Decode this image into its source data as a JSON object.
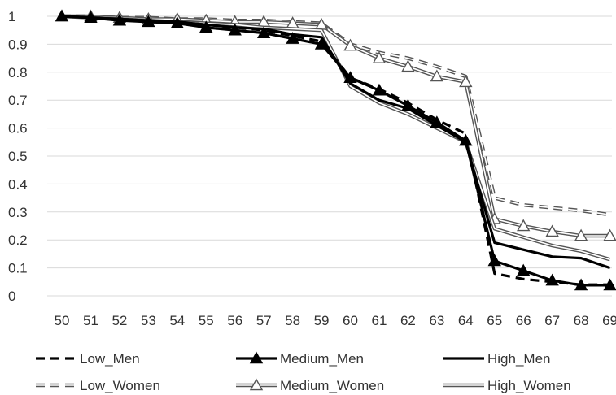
{
  "chart_data": {
    "type": "line",
    "x": [
      50,
      51,
      52,
      53,
      54,
      55,
      56,
      57,
      58,
      59,
      60,
      61,
      62,
      63,
      64,
      65,
      66,
      67,
      68,
      69
    ],
    "ylim": [
      0,
      1
    ],
    "yticks": [
      "0",
      "0.1",
      "0.2",
      "0.3",
      "0.4",
      "0.5",
      "0.6",
      "0.7",
      "0.8",
      "0.9",
      "1"
    ],
    "grid": true,
    "legend_position": "bottom",
    "title": "",
    "xlabel": "",
    "ylabel": "",
    "series": [
      {
        "name": "Low_Men",
        "style": "dashed-thick",
        "color": "#000000",
        "values": [
          1.0,
          0.995,
          0.99,
          0.985,
          0.98,
          0.97,
          0.96,
          0.95,
          0.93,
          0.91,
          0.78,
          0.74,
          0.69,
          0.63,
          0.58,
          0.08,
          0.06,
          0.05,
          0.04,
          0.04
        ]
      },
      {
        "name": "Medium_Men",
        "style": "solid-thick-triangle",
        "color": "#000000",
        "values": [
          1.0,
          0.995,
          0.985,
          0.98,
          0.975,
          0.96,
          0.95,
          0.94,
          0.92,
          0.9,
          0.78,
          0.735,
          0.68,
          0.62,
          0.555,
          0.125,
          0.09,
          0.055,
          0.038,
          0.038
        ]
      },
      {
        "name": "High_Men",
        "style": "solid-thick",
        "color": "#000000",
        "values": [
          1.0,
          0.995,
          0.99,
          0.985,
          0.98,
          0.97,
          0.96,
          0.955,
          0.935,
          0.925,
          0.76,
          0.7,
          0.67,
          0.61,
          0.55,
          0.19,
          0.165,
          0.14,
          0.135,
          0.1
        ]
      },
      {
        "name": "Low_Women",
        "style": "double-dashed",
        "color": "#555555",
        "values": [
          1.0,
          1.0,
          0.995,
          0.995,
          0.99,
          0.99,
          0.985,
          0.985,
          0.98,
          0.975,
          0.9,
          0.87,
          0.85,
          0.82,
          0.785,
          0.35,
          0.325,
          0.315,
          0.305,
          0.29
        ]
      },
      {
        "name": "Medium_Women",
        "style": "double-triangle",
        "color": "#555555",
        "values": [
          1.0,
          1.0,
          0.995,
          0.99,
          0.99,
          0.985,
          0.98,
          0.98,
          0.975,
          0.97,
          0.895,
          0.85,
          0.82,
          0.785,
          0.765,
          0.275,
          0.25,
          0.23,
          0.215,
          0.215
        ]
      },
      {
        "name": "High_Women",
        "style": "double",
        "color": "#555555",
        "values": [
          1.0,
          0.995,
          0.99,
          0.985,
          0.98,
          0.975,
          0.97,
          0.96,
          0.955,
          0.95,
          0.75,
          0.69,
          0.65,
          0.6,
          0.55,
          0.24,
          0.21,
          0.18,
          0.16,
          0.13
        ]
      }
    ]
  }
}
